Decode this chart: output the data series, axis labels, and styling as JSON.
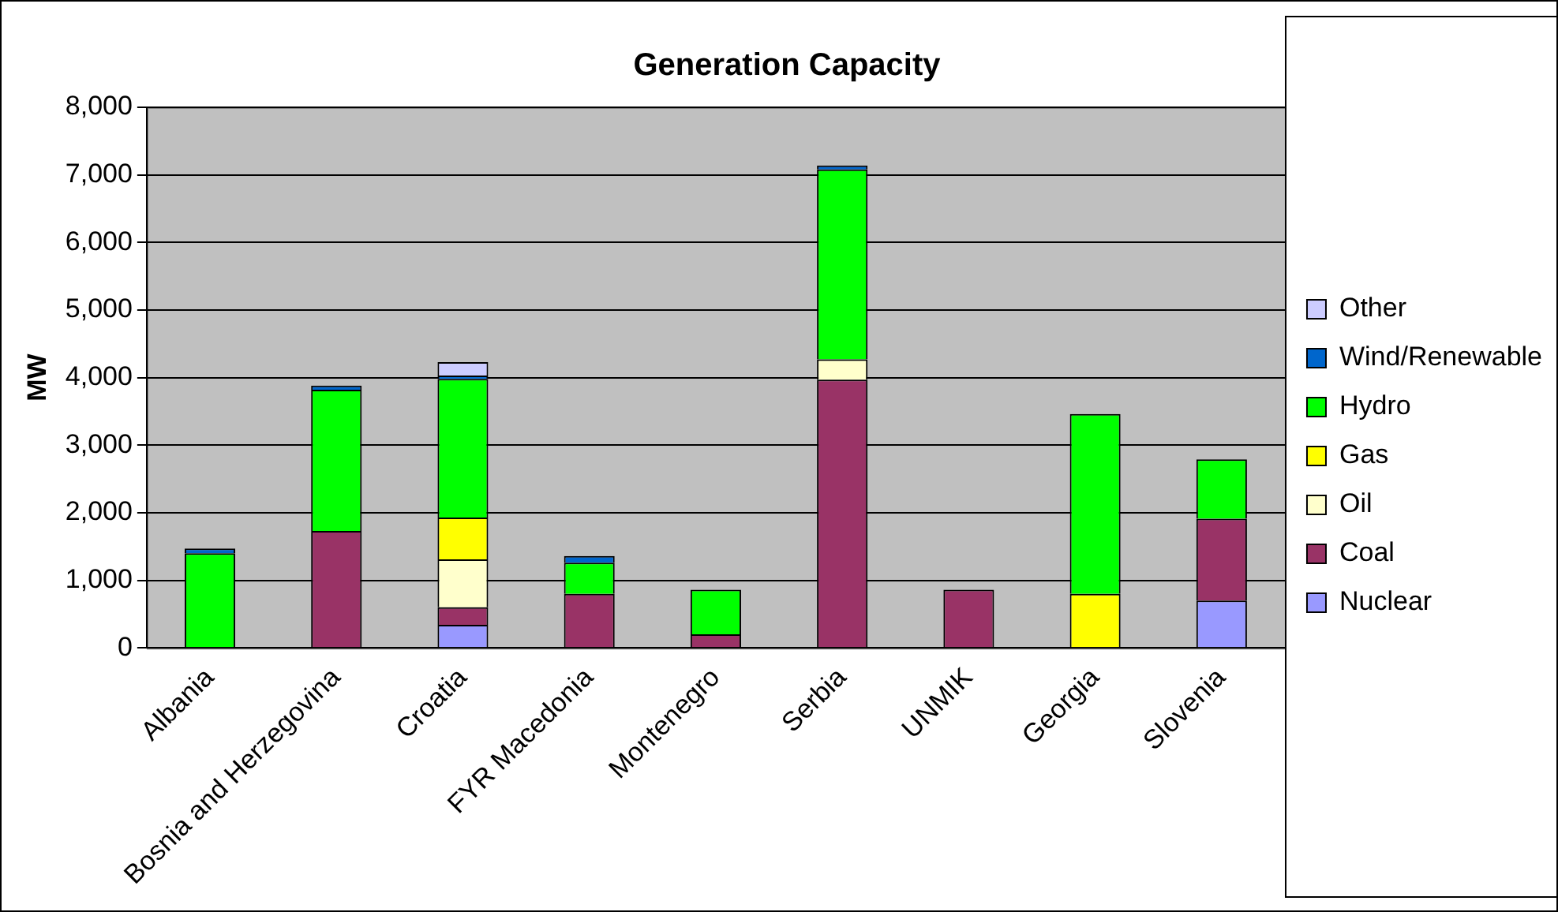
{
  "chart_data": {
    "type": "bar",
    "title": "Generation Capacity",
    "ylabel": "MW",
    "stacked": true,
    "grid": "y",
    "legend": "right",
    "categories": [
      "Albania",
      "Bosnia and Herzegovina",
      "Croatia",
      "FYR Macedonia",
      "Montenegro",
      "Serbia",
      "UNMIK",
      "Georgia",
      "Slovenia"
    ],
    "ylim": [
      0,
      8000
    ],
    "yticks": [
      0,
      {
        "value": 1000,
        "label": "1,000"
      },
      {
        "value": 2000,
        "label": "2,000"
      },
      {
        "value": 3000,
        "label": "3,000"
      },
      {
        "value": 4000,
        "label": "4,000"
      },
      {
        "value": 5000,
        "label": "5,000"
      },
      {
        "value": 6000,
        "label": "6,000"
      },
      {
        "value": 7000,
        "label": "7,000"
      },
      {
        "value": 8000,
        "label": "8,000"
      }
    ],
    "series": [
      {
        "name": "Nuclear",
        "color": "#9999ff",
        "values": [
          null,
          null,
          340,
          null,
          null,
          null,
          null,
          null,
          700
        ]
      },
      {
        "name": "Coal",
        "color": "#993366",
        "values": [
          null,
          1730,
          260,
          800,
          200,
          3970,
          860,
          null,
          1210
        ]
      },
      {
        "name": "Oil",
        "color": "#ffffcc",
        "values": [
          null,
          null,
          710,
          null,
          null,
          300,
          null,
          null,
          null
        ]
      },
      {
        "name": "Gas",
        "color": "#ffff00",
        "values": [
          null,
          null,
          620,
          null,
          null,
          null,
          null,
          800,
          null
        ]
      },
      {
        "name": "Hydro",
        "color": "#00ff00",
        "values": [
          1400,
          2090,
          2050,
          460,
          660,
          2810,
          null,
          2660,
          880
        ]
      },
      {
        "name": "Wind/Renewable",
        "color": "#0066cc",
        "values": [
          70,
          60,
          50,
          100,
          null,
          60,
          null,
          null,
          null
        ]
      },
      {
        "name": "Other",
        "color": "#ccccff",
        "values": [
          null,
          null,
          200,
          null,
          null,
          null,
          null,
          null,
          null
        ]
      }
    ]
  }
}
